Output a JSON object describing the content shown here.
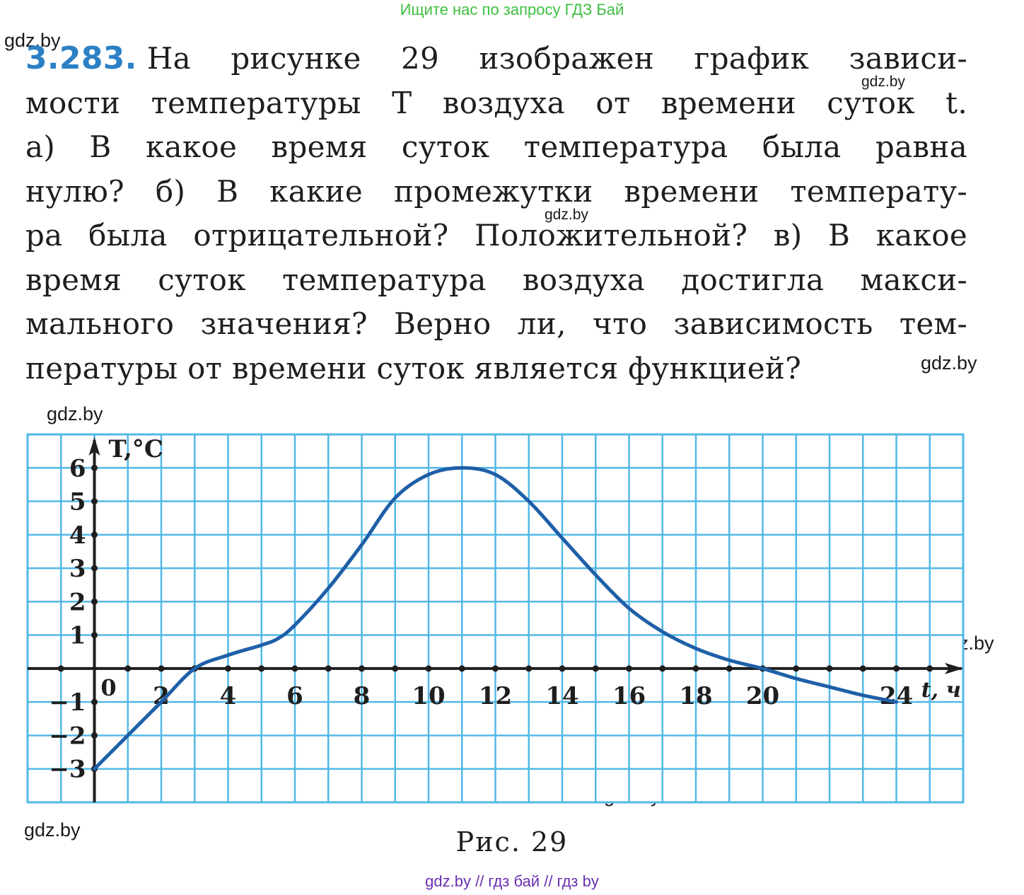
{
  "banner": "Ищите нас по запросу ГДЗ Бай",
  "watermark": "gdz.by",
  "problem": {
    "number": "3.283.",
    "lines": [
      "На рисунке 29 изображен график зависи-",
      "мости температуры T воздуха от времени суток t.",
      "а) В какое время суток температура была равна",
      "нулю? б) В какие промежутки времени температу-",
      "ра была отрицательной? Положительной? в) В какое",
      "время суток температура воздуха достигла макси-",
      "мального значения? Верно ли, что зависимость тем-",
      "пературы от времени суток является функцией?"
    ]
  },
  "figure_caption": "Рис. 29",
  "footer": "gdz.by  //  гдз бай  //  гдз by",
  "chart_data": {
    "type": "line",
    "title": "",
    "xlabel": "t, ч",
    "ylabel": "T,°C",
    "xlim": [
      -2,
      26
    ],
    "ylim": [
      -4,
      7
    ],
    "x_ticks": [
      2,
      4,
      6,
      8,
      10,
      12,
      14,
      16,
      18,
      20,
      24
    ],
    "y_ticks": [
      -3,
      -2,
      -1,
      1,
      2,
      3,
      4,
      5,
      6
    ],
    "origin_label": "0",
    "grid": true,
    "colors": {
      "grid": "#52b8e6",
      "curve": "#1e5fa8",
      "axis": "#1e1e1e",
      "background": "#ffffff"
    },
    "series": [
      {
        "x": [
          0,
          1,
          2,
          3,
          4,
          5,
          5.5,
          6,
          7,
          8,
          9,
          10,
          11,
          12,
          13,
          14,
          15,
          16,
          17,
          18,
          19,
          20,
          21,
          22,
          23,
          24
        ],
        "y": [
          -3,
          -2,
          -1,
          0,
          0.4,
          0.7,
          0.9,
          1.3,
          2.4,
          3.7,
          5.1,
          5.8,
          6,
          5.8,
          5,
          3.9,
          2.8,
          1.8,
          1.1,
          0.6,
          0.25,
          0,
          -0.3,
          -0.55,
          -0.8,
          -1
        ]
      }
    ]
  }
}
